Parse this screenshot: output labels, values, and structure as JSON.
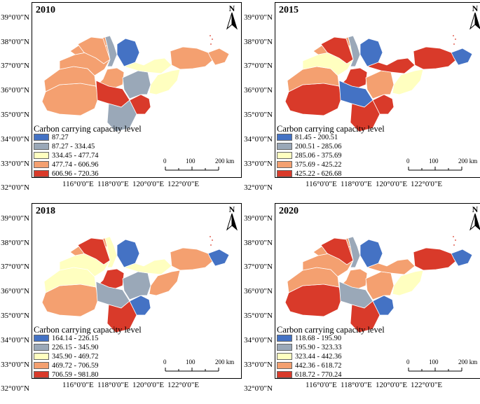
{
  "axes": {
    "lat_labels": [
      "39°0'0\"N",
      "38°0'0\"N",
      "37°0'0\"N",
      "36°0'0\"N",
      "35°0'0\"N",
      "34°0'0\"N",
      "33°0'0\"N",
      "32°0'0\"N"
    ],
    "lon_labels": [
      "116°0'0\"E",
      "118°0'0\"E",
      "120°0'0\"E",
      "122°0'0\"E"
    ]
  },
  "north_label": "N",
  "scale_labels": [
    "0",
    "100",
    "200 km"
  ],
  "legend_title": "Carbon carrying capacity level",
  "level_colors": [
    "#4472c4",
    "#9aa8b8",
    "#ffffc0",
    "#f4a070",
    "#d93a2a"
  ],
  "panels": [
    {
      "year": "2010",
      "legend": [
        "87.27",
        "87.27 - 334.45",
        "334.45 - 477.74",
        "477.74 - 606.96",
        "606.96 - 720.36"
      ],
      "region_levels": [
        3,
        3,
        3,
        3,
        3,
        1,
        0,
        3,
        4,
        1,
        4,
        1,
        2,
        3,
        2,
        3
      ]
    },
    {
      "year": "2015",
      "legend": [
        "81.45 - 200.51",
        "200.51 - 285.06",
        "285.06 - 375.69",
        "375.69 - 425.22",
        "425.22 - 626.68"
      ],
      "region_levels": [
        4,
        3,
        2,
        3,
        4,
        1,
        0,
        4,
        0,
        4,
        4,
        3,
        4,
        4,
        2,
        0
      ]
    },
    {
      "year": "2018",
      "legend": [
        "164.14 - 226.15",
        "226.15 - 345.90",
        "345.90 - 469.72",
        "469.72 - 706.59",
        "706.59 - 981.80"
      ],
      "region_levels": [
        3,
        2,
        2,
        3,
        4,
        2,
        0,
        4,
        1,
        4,
        0,
        1,
        2,
        3,
        3,
        0
      ]
    },
    {
      "year": "2020",
      "legend": [
        "118.68 - 195.90",
        "195.90 - 323.33",
        "323.44 - 442.36",
        "442.36 - 618.72",
        "618.72 - 770.24"
      ],
      "region_levels": [
        4,
        3,
        3,
        3,
        4,
        1,
        0,
        3,
        1,
        4,
        0,
        3,
        3,
        4,
        2,
        0
      ]
    }
  ]
}
